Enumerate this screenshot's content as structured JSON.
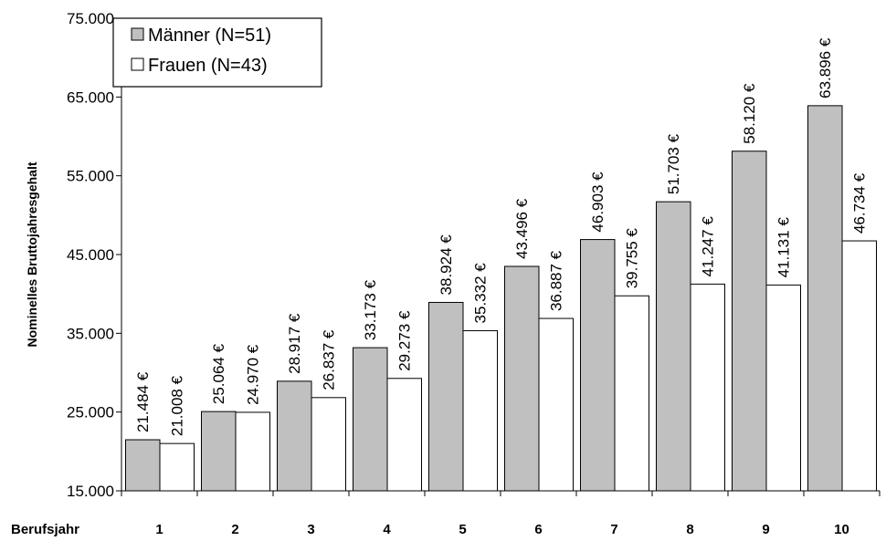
{
  "chart_data": {
    "type": "bar",
    "ylabel": "Nominelles Bruttojahresgehalt",
    "xlabel": "Berufsjahr",
    "categories": [
      "1",
      "2",
      "3",
      "4",
      "5",
      "6",
      "7",
      "8",
      "9",
      "10"
    ],
    "ylim": [
      15000,
      75000
    ],
    "yticks": [
      15000,
      25000,
      35000,
      45000,
      55000,
      65000,
      75000
    ],
    "ytick_labels": [
      "15.000",
      "25.000",
      "35.000",
      "45.000",
      "55.000",
      "65.000",
      "75.000"
    ],
    "grid": false,
    "legend_position": "top-left",
    "series": [
      {
        "name": "Männer (N=51)",
        "color": "#c0c0c0",
        "values": [
          21484,
          25064,
          28917,
          33173,
          38924,
          43496,
          46903,
          51703,
          58120,
          63896
        ],
        "labels": [
          "21.484 €",
          "25.064 €",
          "28.917 €",
          "33.173 €",
          "38.924 €",
          "43.496 €",
          "46.903 €",
          "51.703 €",
          "58.120 €",
          "63.896 €"
        ]
      },
      {
        "name": "Frauen  (N=43)",
        "color": "#ffffff",
        "values": [
          21008,
          24970,
          26837,
          29273,
          35332,
          36887,
          39755,
          41247,
          41131,
          46734
        ],
        "labels": [
          "21.008 €",
          "24.970 €",
          "26.837 €",
          "29.273 €",
          "35.332 €",
          "36.887 €",
          "39.755 €",
          "41.247 €",
          "41.131 €",
          "46.734 €"
        ]
      }
    ]
  }
}
